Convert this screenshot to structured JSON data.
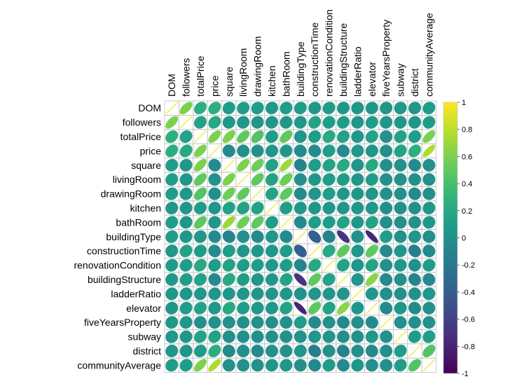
{
  "chart_data": {
    "type": "heatmap",
    "variables": [
      "DOM",
      "followers",
      "totalPrice",
      "price",
      "square",
      "livingRoom",
      "drawingRoom",
      "kitchen",
      "bathRoom",
      "buildingType",
      "constructionTime",
      "renovationCondition",
      "buildingStructure",
      "ladderRatio",
      "elevator",
      "fiveYearsProperty",
      "subway",
      "district",
      "communityAverage"
    ],
    "matrix": [
      [
        1.0,
        0.6,
        0.25,
        0.25,
        0.1,
        0.1,
        0.1,
        0.05,
        0.1,
        0.1,
        0.05,
        0.1,
        0.05,
        0.05,
        0.05,
        0.05,
        0.05,
        0.05,
        0.1
      ],
      [
        0.6,
        1.0,
        0.15,
        0.2,
        0.05,
        0.05,
        0.05,
        0.05,
        0.05,
        0.05,
        0.15,
        0.1,
        0.1,
        0.05,
        0.1,
        0.05,
        0.05,
        0.05,
        0.1
      ],
      [
        0.25,
        0.15,
        1.0,
        0.6,
        0.6,
        0.5,
        0.45,
        0.1,
        0.5,
        0.05,
        0.1,
        0.2,
        0.15,
        0.05,
        0.15,
        0.0,
        0.15,
        0.1,
        0.6
      ],
      [
        0.25,
        0.2,
        0.6,
        1.0,
        -0.05,
        0.0,
        0.0,
        0.05,
        0.05,
        -0.05,
        -0.05,
        0.1,
        -0.05,
        0.05,
        0.05,
        0.0,
        0.15,
        0.25,
        0.75
      ],
      [
        0.1,
        0.05,
        0.6,
        -0.05,
        1.0,
        0.6,
        0.55,
        0.15,
        0.7,
        -0.1,
        0.1,
        0.15,
        0.2,
        0.05,
        0.2,
        0.0,
        0.0,
        -0.05,
        0.0
      ],
      [
        0.1,
        0.05,
        0.5,
        0.0,
        0.6,
        1.0,
        0.5,
        0.15,
        0.55,
        0.0,
        0.05,
        0.1,
        0.1,
        0.05,
        0.1,
        0.0,
        0.0,
        0.0,
        0.0
      ],
      [
        0.1,
        0.05,
        0.45,
        0.0,
        0.55,
        0.5,
        1.0,
        0.15,
        0.5,
        -0.05,
        0.05,
        0.1,
        0.05,
        0.05,
        0.05,
        0.0,
        0.0,
        -0.05,
        0.0
      ],
      [
        0.05,
        0.05,
        0.1,
        0.05,
        0.15,
        0.15,
        0.15,
        1.0,
        0.1,
        0.05,
        0.05,
        0.05,
        0.05,
        0.05,
        0.05,
        0.0,
        0.0,
        0.0,
        0.05
      ],
      [
        0.1,
        0.05,
        0.5,
        0.05,
        0.7,
        0.55,
        0.5,
        0.1,
        1.0,
        -0.05,
        0.1,
        0.1,
        0.15,
        0.05,
        0.15,
        0.0,
        0.0,
        0.0,
        0.05
      ],
      [
        0.1,
        0.05,
        0.05,
        -0.05,
        -0.1,
        0.0,
        -0.05,
        0.05,
        -0.05,
        1.0,
        -0.4,
        -0.1,
        -0.7,
        0.0,
        -0.8,
        0.1,
        0.0,
        0.05,
        0.0
      ],
      [
        0.05,
        0.15,
        0.1,
        -0.05,
        0.1,
        0.05,
        0.05,
        0.05,
        0.1,
        -0.4,
        1.0,
        0.2,
        0.5,
        0.05,
        0.5,
        -0.05,
        0.05,
        -0.15,
        -0.05
      ],
      [
        0.1,
        0.1,
        0.2,
        0.1,
        0.15,
        0.1,
        0.1,
        0.05,
        0.1,
        -0.1,
        0.2,
        1.0,
        0.15,
        0.05,
        0.15,
        0.0,
        0.05,
        0.0,
        0.1
      ],
      [
        0.05,
        0.1,
        0.15,
        -0.05,
        0.2,
        0.1,
        0.05,
        0.05,
        0.15,
        -0.7,
        0.5,
        0.15,
        1.0,
        0.05,
        0.65,
        -0.05,
        0.0,
        -0.1,
        -0.05
      ],
      [
        0.05,
        0.05,
        0.05,
        0.05,
        0.05,
        0.05,
        0.05,
        0.05,
        0.05,
        0.0,
        0.05,
        0.05,
        0.05,
        1.0,
        0.05,
        0.0,
        0.0,
        0.0,
        0.05
      ],
      [
        0.05,
        0.1,
        0.15,
        0.05,
        0.2,
        0.1,
        0.05,
        0.05,
        0.15,
        -0.8,
        0.5,
        0.15,
        0.65,
        0.05,
        1.0,
        -0.05,
        0.05,
        -0.05,
        0.0
      ],
      [
        0.05,
        0.05,
        0.0,
        0.0,
        0.0,
        0.0,
        0.0,
        0.0,
        0.0,
        0.1,
        -0.05,
        0.0,
        -0.05,
        0.0,
        -0.05,
        1.0,
        0.0,
        0.0,
        0.0
      ],
      [
        0.05,
        0.05,
        0.15,
        0.15,
        0.0,
        0.0,
        0.0,
        0.0,
        0.0,
        0.0,
        0.05,
        0.05,
        0.0,
        0.0,
        0.05,
        0.0,
        1.0,
        0.1,
        0.1
      ],
      [
        0.05,
        0.05,
        0.1,
        0.25,
        -0.05,
        0.0,
        -0.05,
        0.0,
        0.0,
        0.05,
        -0.15,
        0.0,
        -0.1,
        0.0,
        -0.05,
        0.0,
        0.1,
        1.0,
        0.45
      ],
      [
        0.1,
        0.1,
        0.6,
        0.75,
        0.0,
        0.0,
        0.0,
        0.05,
        0.05,
        0.0,
        -0.05,
        0.1,
        -0.05,
        0.05,
        0.0,
        0.0,
        0.1,
        0.45,
        1.0
      ]
    ],
    "colorscale": "viridis",
    "colorbar_range": [
      -1,
      1
    ],
    "colorbar_ticks": [
      "1",
      "0.8",
      "0.6",
      "0.4",
      "0.2",
      "0",
      "-0.2",
      "-0.4",
      "-0.6",
      "-0.8",
      "-1"
    ],
    "diagonal_color": "#f2ea3c",
    "grid_color": "#bfbfbf",
    "glyph": "ellipse",
    "legend_position": "right"
  }
}
